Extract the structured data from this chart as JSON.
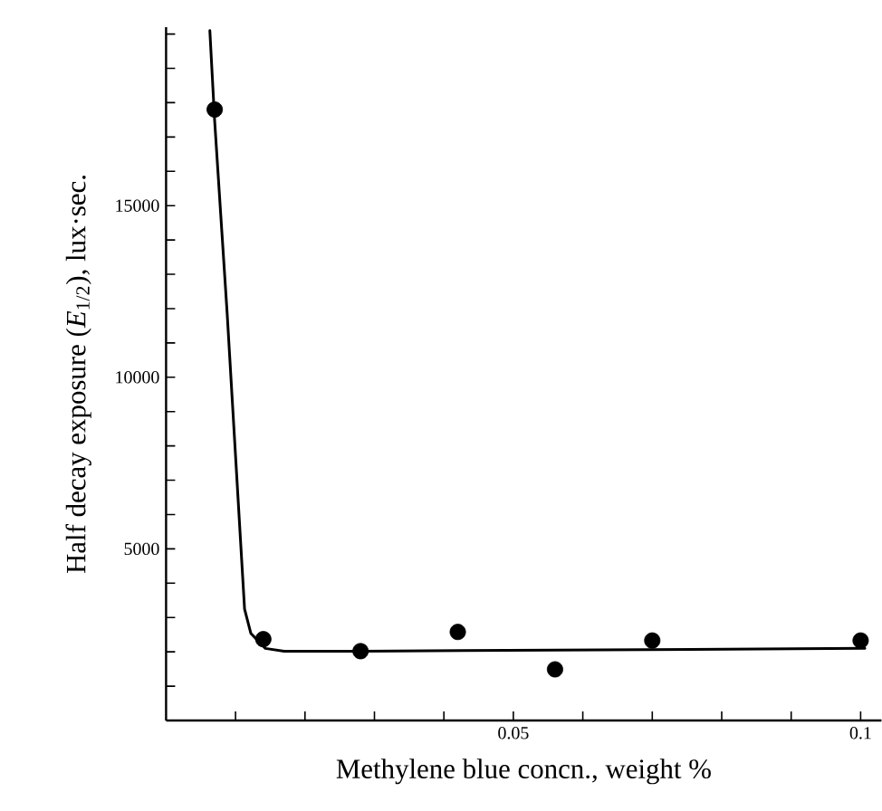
{
  "chart_data": {
    "type": "scatter",
    "xlabel": "Methylene blue concn., weight %",
    "ylabel": "Half decay exposure (*E*$_{1/2}$), lux·sec.",
    "xlim": [
      0,
      0.103
    ],
    "ylim": [
      0,
      20200
    ],
    "xticks": [
      {
        "value": 0.01,
        "label": null
      },
      {
        "value": 0.02,
        "label": null
      },
      {
        "value": 0.03,
        "label": null
      },
      {
        "value": 0.04,
        "label": null
      },
      0.05,
      {
        "value": 0.06,
        "label": null
      },
      {
        "value": 0.07,
        "label": null
      },
      {
        "value": 0.08,
        "label": null
      },
      {
        "value": 0.09,
        "label": null
      },
      0.1
    ],
    "yticks": [
      {
        "value": 1000,
        "label": null
      },
      {
        "value": 2000,
        "label": null
      },
      {
        "value": 3000,
        "label": null
      },
      {
        "value": 4000,
        "label": null
      },
      5000,
      {
        "value": 6000,
        "label": null
      },
      {
        "value": 7000,
        "label": null
      },
      {
        "value": 8000,
        "label": null
      },
      {
        "value": 9000,
        "label": null
      },
      10000,
      {
        "value": 11000,
        "label": null
      },
      {
        "value": 12000,
        "label": null
      },
      {
        "value": 13000,
        "label": null
      },
      {
        "value": 14000,
        "label": null
      },
      15000,
      {
        "value": 16000,
        "label": null
      },
      {
        "value": 17000,
        "label": null
      },
      {
        "value": 18000,
        "label": null
      },
      {
        "value": 19000,
        "label": null
      },
      {
        "value": 20000,
        "label": null
      }
    ],
    "marker": "circle",
    "series": [
      {
        "color": "#000000",
        "x": [
          0.007,
          0.014,
          0.028,
          0.042,
          0.056,
          0.07,
          0.1
        ],
        "values": [
          17800,
          2370,
          2020,
          2580,
          1490,
          2330,
          2330
        ]
      },
      {
        "type": "line",
        "color": "#000000",
        "marker": "none",
        "line_style": "solid",
        "x": [
          0.0063,
          0.007,
          0.0088,
          0.0113,
          0.0122,
          0.0143,
          0.017,
          0.028,
          0.1006
        ],
        "values": [
          20100,
          17450,
          11840,
          3250,
          2540,
          2100,
          2020,
          2020,
          2100
        ]
      }
    ]
  }
}
